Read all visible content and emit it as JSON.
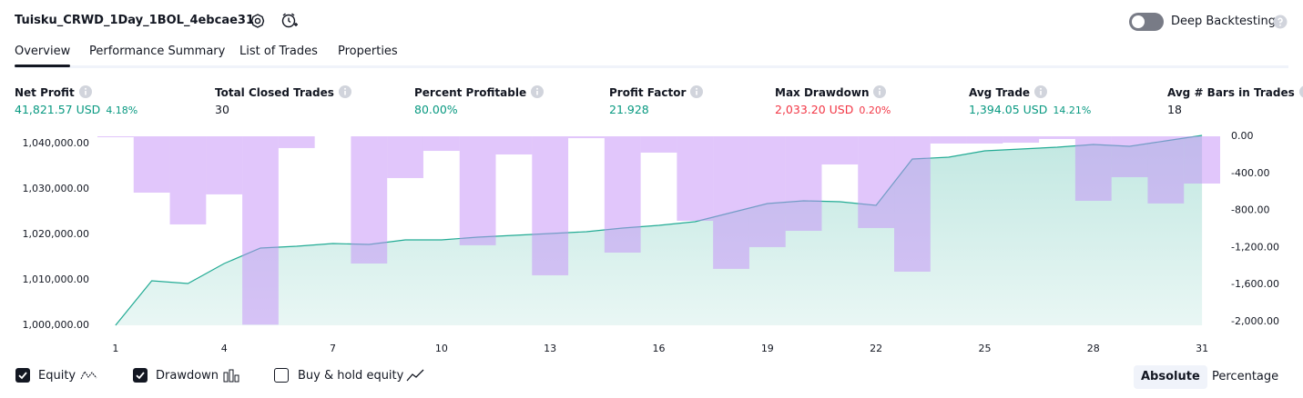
{
  "header": {
    "title": "Tuisku_CRWD_1Day_1BOL_4ebcae31",
    "deep_backtesting": {
      "label": "Deep Backtesting",
      "on": false
    }
  },
  "tabs": {
    "items": [
      "Overview",
      "Performance Summary",
      "List of Trades",
      "Properties"
    ],
    "active": 0
  },
  "metrics": [
    {
      "label": "Net Profit",
      "value": "41,821.57 USD",
      "percent": "4.18%",
      "color": "#089981"
    },
    {
      "label": "Total Closed Trades",
      "value": "30",
      "color": "#131722"
    },
    {
      "label": "Percent Profitable",
      "value": "80.00%",
      "color": "#089981"
    },
    {
      "label": "Profit Factor",
      "value": "21.928",
      "color": "#089981"
    },
    {
      "label": "Max Drawdown",
      "value": "2,033.20 USD",
      "percent": "0.20%",
      "color": "#f23645"
    },
    {
      "label": "Avg Trade",
      "value": "1,394.05 USD",
      "percent": "14.21%",
      "color": "#089981"
    },
    {
      "label": "Avg # Bars in Trades",
      "value": "18",
      "color": "#131722"
    }
  ],
  "chart_data": {
    "type": "combo",
    "x": [
      1,
      2,
      3,
      4,
      5,
      6,
      7,
      8,
      9,
      10,
      11,
      12,
      13,
      14,
      15,
      16,
      17,
      18,
      19,
      20,
      21,
      22,
      23,
      24,
      25,
      26,
      27,
      28,
      29,
      30,
      31
    ],
    "xlim": [
      0.5,
      31.5
    ],
    "xticks": [
      1,
      4,
      7,
      10,
      13,
      16,
      19,
      22,
      25,
      28,
      31
    ],
    "ylim": [
      1000000,
      1041600
    ],
    "yticks": [
      {
        "value": 1000000,
        "label": "1,000,000.00"
      },
      {
        "value": 1010000,
        "label": "1,010,000.00"
      },
      {
        "value": 1020000,
        "label": "1,020,000.00"
      },
      {
        "value": 1030000,
        "label": "1,030,000.00"
      },
      {
        "value": 1040000,
        "label": "1,040,000.00"
      }
    ],
    "y2lim": [
      -2040,
      0
    ],
    "y2ticks": [
      {
        "value": 0,
        "label": "0.00"
      },
      {
        "value": -400,
        "label": "-400.00"
      },
      {
        "value": -800,
        "label": "-800.00"
      },
      {
        "value": -1200,
        "label": "-1,200.00"
      },
      {
        "value": -1600,
        "label": "-1,600.00"
      },
      {
        "value": -2000,
        "label": "-2,000.00"
      }
    ],
    "series": [
      {
        "name": "Equity",
        "type": "area",
        "color": "#22ab94",
        "visible": true,
        "values": [
          1000000,
          1009800,
          1009200,
          1013600,
          1017000,
          1017400,
          1018000,
          1017800,
          1018800,
          1018800,
          1019400,
          1019800,
          1020200,
          1020600,
          1021400,
          1022000,
          1022800,
          1024800,
          1026800,
          1027400,
          1027200,
          1026400,
          1036600,
          1037000,
          1038400,
          1038800,
          1039200,
          1039800,
          1039400,
          1040600,
          1041800
        ]
      },
      {
        "name": "Drawdown",
        "type": "bar",
        "axis": "y2",
        "color": "#c38ef7",
        "visible": true,
        "values": [
          -10,
          -608,
          -951,
          -627,
          -2033,
          -127,
          0,
          -1373,
          -451,
          -157,
          -1176,
          -196,
          -1500,
          -20,
          -1255,
          -176,
          -912,
          -1431,
          -1196,
          -1020,
          -304,
          -990,
          -1461,
          -78,
          -78,
          -69,
          -29,
          -696,
          -441,
          -725,
          -510
        ]
      }
    ]
  },
  "chart_controls": {
    "buy_hold": {
      "label": "Buy & hold equity",
      "checked": false
    },
    "scales": [
      "Absolute",
      "Percentage"
    ],
    "active_scale": 0
  }
}
